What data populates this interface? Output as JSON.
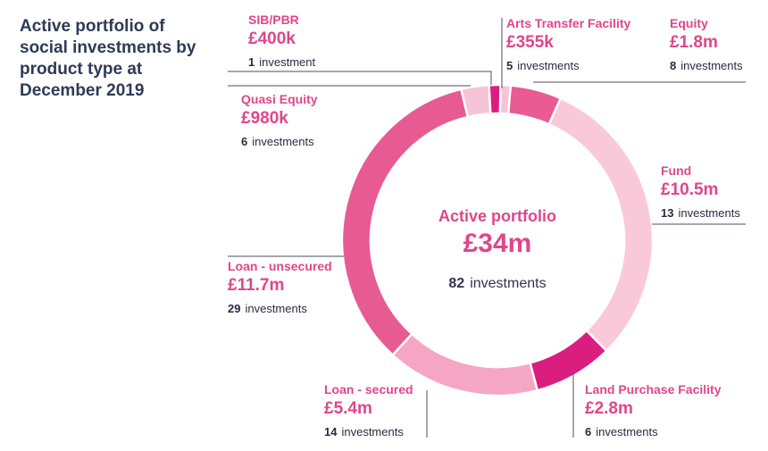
{
  "chart_data": {
    "type": "pie",
    "title": "Active portfolio of social investments by product type at December 2019",
    "center": {
      "label": "Active portfolio",
      "value": "£34m",
      "count": "82",
      "count_suffix": "investments"
    },
    "slices": [
      {
        "name": "Arts Transfer Facility",
        "value_label": "£355k",
        "value_m": 0.355,
        "count": "5",
        "count_suffix": "investments",
        "color": "#f7c3d6"
      },
      {
        "name": "Equity",
        "value_label": "£1.8m",
        "value_m": 1.8,
        "count": "8",
        "count_suffix": "investments",
        "color": "#e95b92"
      },
      {
        "name": "Fund",
        "value_label": "£10.5m",
        "value_m": 10.5,
        "count": "13",
        "count_suffix": "investments",
        "color": "#f9c9da"
      },
      {
        "name": "Land Purchase Facility",
        "value_label": "£2.8m",
        "value_m": 2.8,
        "count": "6",
        "count_suffix": "investments",
        "color": "#dc1d80"
      },
      {
        "name": "Loan - secured",
        "value_label": "£5.4m",
        "value_m": 5.4,
        "count": "14",
        "count_suffix": "investments",
        "color": "#f4a6c4"
      },
      {
        "name": "Loan - unsecured",
        "value_label": "£11.7m",
        "value_m": 11.7,
        "count": "29",
        "count_suffix": "investments",
        "color": "#e85a92"
      },
      {
        "name": "Quasi Equity",
        "value_label": "£980k",
        "value_m": 0.98,
        "count": "6",
        "count_suffix": "investments",
        "color": "#f7c3d6"
      },
      {
        "name": "SIB/PBR",
        "value_label": "£400k",
        "value_m": 0.4,
        "count": "1",
        "count_suffix": "investment",
        "color": "#dc1d80"
      }
    ]
  }
}
